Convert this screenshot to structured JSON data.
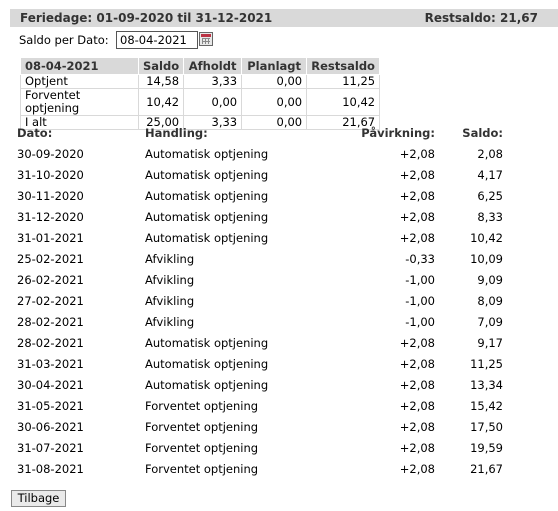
{
  "header": {
    "title": "Feriedage: 01-09-2020 til 31-12-2021",
    "balance_label": "Restsaldo: 21,67"
  },
  "filter": {
    "label": "Saldo per Dato:",
    "date_value": "08-04-2021",
    "calendar_icon": "calendar-icon"
  },
  "summary": {
    "headers": [
      "08-04-2021",
      "Saldo",
      "Afholdt",
      "Planlagt",
      "Restsaldo"
    ],
    "rows": [
      [
        "Optjent",
        "14,58",
        "3,33",
        "0,00",
        "11,25"
      ],
      [
        "Forventet optjening",
        "10,42",
        "0,00",
        "0,00",
        "10,42"
      ],
      [
        "I alt",
        "25,00",
        "3,33",
        "0,00",
        "21,67"
      ]
    ]
  },
  "transactions": {
    "headers": {
      "date": "Dato:",
      "action": "Handling:",
      "effect": "Påvirkning:",
      "balance": "Saldo:"
    },
    "rows": [
      {
        "date": "30-09-2020",
        "action": "Automatisk optjening",
        "effect": "+2,08",
        "balance": "2,08"
      },
      {
        "date": "31-10-2020",
        "action": "Automatisk optjening",
        "effect": "+2,08",
        "balance": "4,17"
      },
      {
        "date": "30-11-2020",
        "action": "Automatisk optjening",
        "effect": "+2,08",
        "balance": "6,25"
      },
      {
        "date": "31-12-2020",
        "action": "Automatisk optjening",
        "effect": "+2,08",
        "balance": "8,33"
      },
      {
        "date": "31-01-2021",
        "action": "Automatisk optjening",
        "effect": "+2,08",
        "balance": "10,42"
      },
      {
        "date": "25-02-2021",
        "action": "Afvikling",
        "effect": "-0,33",
        "balance": "10,09"
      },
      {
        "date": "26-02-2021",
        "action": "Afvikling",
        "effect": "-1,00",
        "balance": "9,09"
      },
      {
        "date": "27-02-2021",
        "action": "Afvikling",
        "effect": "-1,00",
        "balance": "8,09"
      },
      {
        "date": "28-02-2021",
        "action": "Afvikling",
        "effect": "-1,00",
        "balance": "7,09"
      },
      {
        "date": "28-02-2021",
        "action": "Automatisk optjening",
        "effect": "+2,08",
        "balance": "9,17"
      },
      {
        "date": "31-03-2021",
        "action": "Automatisk optjening",
        "effect": "+2,08",
        "balance": "11,25"
      },
      {
        "date": "30-04-2021",
        "action": "Automatisk optjening",
        "effect": "+2,08",
        "balance": "13,34"
      },
      {
        "date": "31-05-2021",
        "action": "Forventet optjening",
        "effect": "+2,08",
        "balance": "15,42"
      },
      {
        "date": "30-06-2021",
        "action": "Forventet optjening",
        "effect": "+2,08",
        "balance": "17,50"
      },
      {
        "date": "31-07-2021",
        "action": "Forventet optjening",
        "effect": "+2,08",
        "balance": "19,59"
      },
      {
        "date": "31-08-2021",
        "action": "Forventet optjening",
        "effect": "+2,08",
        "balance": "21,67"
      }
    ]
  },
  "footer": {
    "back_label": "Tilbage"
  }
}
